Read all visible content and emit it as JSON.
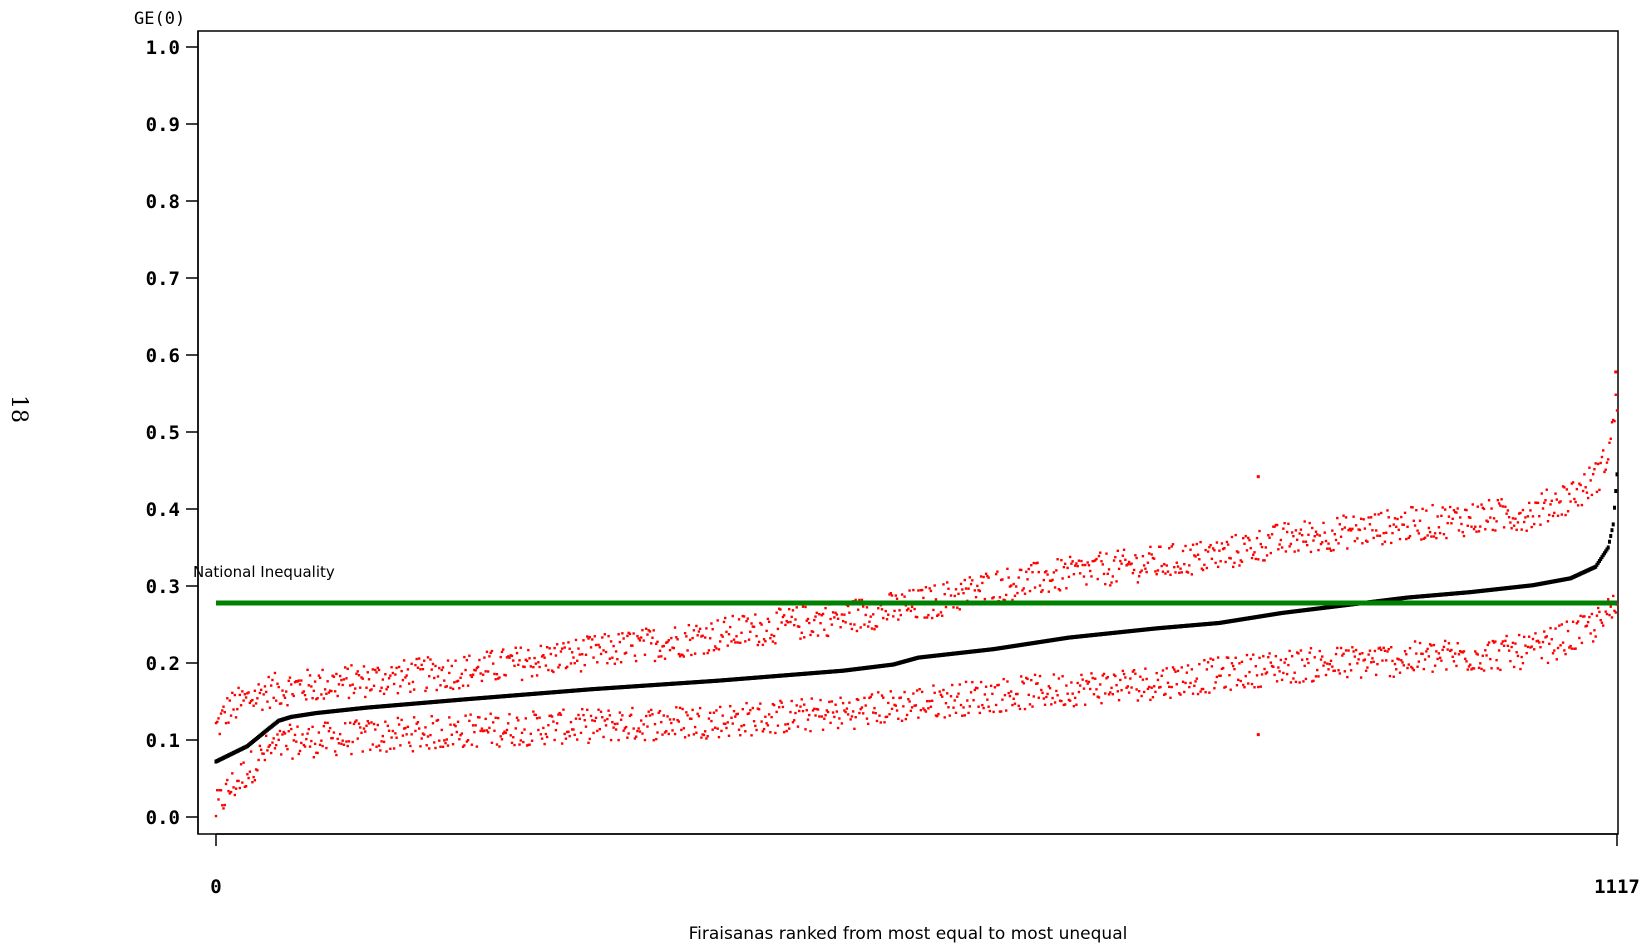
{
  "page_number": "18",
  "chart_data": {
    "type": "scatter",
    "ylabel": "GE(0)",
    "xlabel": "Firaisanas ranked from most equal to most unequal",
    "xlim": [
      0,
      1117
    ],
    "ylim": [
      0.0,
      1.0
    ],
    "x_ticks": [
      "0",
      "1117"
    ],
    "y_ticks": [
      "0.0",
      "0.1",
      "0.2",
      "0.3",
      "0.4",
      "0.5",
      "0.6",
      "0.7",
      "0.8",
      "0.9",
      "1.0"
    ],
    "grid": false,
    "reference_line": {
      "label": "National Inequality",
      "value": 0.278,
      "color": "#008000"
    },
    "colors": {
      "estimate": "#000000",
      "bounds": "#ff0000"
    },
    "estimate_profile": [
      [
        0,
        0.072
      ],
      [
        10,
        0.08
      ],
      [
        25,
        0.092
      ],
      [
        40,
        0.112
      ],
      [
        50,
        0.125
      ],
      [
        60,
        0.13
      ],
      [
        80,
        0.135
      ],
      [
        120,
        0.142
      ],
      [
        200,
        0.153
      ],
      [
        300,
        0.166
      ],
      [
        400,
        0.177
      ],
      [
        500,
        0.19
      ],
      [
        540,
        0.198
      ],
      [
        560,
        0.207
      ],
      [
        620,
        0.218
      ],
      [
        680,
        0.233
      ],
      [
        750,
        0.245
      ],
      [
        800,
        0.252
      ],
      [
        850,
        0.265
      ],
      [
        900,
        0.275
      ],
      [
        950,
        0.285
      ],
      [
        1000,
        0.292
      ],
      [
        1050,
        0.301
      ],
      [
        1080,
        0.31
      ],
      [
        1100,
        0.325
      ],
      [
        1110,
        0.35
      ],
      [
        1114,
        0.38
      ],
      [
        1117,
        0.445
      ]
    ],
    "upper_bound_profile": [
      [
        0,
        0.115
      ],
      [
        10,
        0.14
      ],
      [
        25,
        0.152
      ],
      [
        40,
        0.163
      ],
      [
        60,
        0.168
      ],
      [
        200,
        0.19
      ],
      [
        500,
        0.26
      ],
      [
        560,
        0.275
      ],
      [
        620,
        0.3
      ],
      [
        700,
        0.32
      ],
      [
        800,
        0.34
      ],
      [
        850,
        0.36
      ],
      [
        950,
        0.38
      ],
      [
        1050,
        0.395
      ],
      [
        1090,
        0.425
      ],
      [
        1105,
        0.45
      ],
      [
        1112,
        0.49
      ],
      [
        1117,
        0.54
      ]
    ],
    "lower_bound_profile": [
      [
        0,
        0.01
      ],
      [
        10,
        0.035
      ],
      [
        25,
        0.06
      ],
      [
        40,
        0.085
      ],
      [
        60,
        0.098
      ],
      [
        200,
        0.112
      ],
      [
        400,
        0.125
      ],
      [
        500,
        0.135
      ],
      [
        560,
        0.148
      ],
      [
        620,
        0.158
      ],
      [
        750,
        0.175
      ],
      [
        850,
        0.195
      ],
      [
        950,
        0.205
      ],
      [
        1050,
        0.215
      ],
      [
        1090,
        0.24
      ],
      [
        1105,
        0.255
      ],
      [
        1117,
        0.275
      ]
    ],
    "outliers": [
      {
        "x": 831,
        "y": 0.442,
        "series": "upper"
      },
      {
        "x": 831,
        "y": 0.107,
        "series": "lower"
      },
      {
        "x": 1116,
        "y": 0.578,
        "series": "upper"
      }
    ]
  }
}
